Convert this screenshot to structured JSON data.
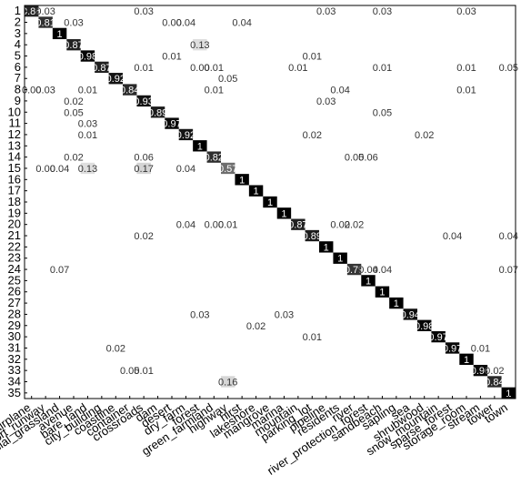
{
  "chart_data": {
    "type": "heatmap",
    "title": "",
    "xlabel": "",
    "ylabel": "",
    "grid": false,
    "colormap": "white-to-black",
    "y_tick_labels": [
      "1",
      "2",
      "3",
      "4",
      "5",
      "6",
      "7",
      "8",
      "9",
      "10",
      "11",
      "12",
      "13",
      "14",
      "15",
      "16",
      "17",
      "18",
      "19",
      "20",
      "21",
      "22",
      "23",
      "24",
      "25",
      "26",
      "27",
      "28",
      "29",
      "30",
      "31",
      "32",
      "33",
      "34",
      "35"
    ],
    "x_tick_labels": [
      "airplane",
      "airport_runway",
      "artificial_grassland",
      "avenue",
      "bare_land",
      "city_building",
      "coastline",
      "container",
      "crossroads",
      "dam",
      "desert",
      "dry_farm",
      "forest",
      "green_farmland",
      "highway",
      "hirst",
      "lakeshore",
      "mangrove",
      "marina",
      "mountain",
      "parking_lot",
      "pipeline",
      "residents",
      "river",
      "river_protection_forest",
      "sandbeach",
      "sapling",
      "sea",
      "shrubwood",
      "snow_mountain",
      "sparse_forest",
      "storage_room",
      "stream",
      "tower",
      "town"
    ],
    "cells": [
      {
        "row": 1,
        "col": 1,
        "value": 0.86,
        "label": "0.86"
      },
      {
        "row": 1,
        "col": 2,
        "value": 0.03,
        "label": "0.03"
      },
      {
        "row": 1,
        "col": 9,
        "value": 0.03,
        "label": "0.03"
      },
      {
        "row": 1,
        "col": 22,
        "value": 0.03,
        "label": "0.03"
      },
      {
        "row": 1,
        "col": 26,
        "value": 0.03,
        "label": "0.03"
      },
      {
        "row": 1,
        "col": 32,
        "value": 0.03,
        "label": "0.03"
      },
      {
        "row": 2,
        "col": 2,
        "value": 0.81,
        "label": "0.81"
      },
      {
        "row": 2,
        "col": 4,
        "value": 0.03,
        "label": "0.03"
      },
      {
        "row": 2,
        "col": 11,
        "value": 0.0,
        "label": "0.00"
      },
      {
        "row": 2,
        "col": 12,
        "value": 0.04,
        "label": "0.04"
      },
      {
        "row": 2,
        "col": 16,
        "value": 0.04,
        "label": "0.04"
      },
      {
        "row": 3,
        "col": 3,
        "value": 1,
        "label": "1"
      },
      {
        "row": 4,
        "col": 4,
        "value": 0.87,
        "label": "0.87"
      },
      {
        "row": 4,
        "col": 13,
        "value": 0.13,
        "label": "0.13"
      },
      {
        "row": 5,
        "col": 5,
        "value": 0.98,
        "label": "0.98"
      },
      {
        "row": 5,
        "col": 11,
        "value": 0.01,
        "label": "0.01"
      },
      {
        "row": 5,
        "col": 21,
        "value": 0.01,
        "label": "0.01"
      },
      {
        "row": 6,
        "col": 6,
        "value": 0.87,
        "label": "0.87"
      },
      {
        "row": 6,
        "col": 9,
        "value": 0.01,
        "label": "0.01"
      },
      {
        "row": 6,
        "col": 13,
        "value": 0.0,
        "label": "0.00"
      },
      {
        "row": 6,
        "col": 14,
        "value": 0.01,
        "label": "0.01"
      },
      {
        "row": 6,
        "col": 20,
        "value": 0.01,
        "label": "0.01"
      },
      {
        "row": 6,
        "col": 26,
        "value": 0.01,
        "label": "0.01"
      },
      {
        "row": 6,
        "col": 32,
        "value": 0.01,
        "label": "0.01"
      },
      {
        "row": 6,
        "col": 35,
        "value": 0.05,
        "label": "0.05"
      },
      {
        "row": 7,
        "col": 7,
        "value": 0.92,
        "label": "0.92"
      },
      {
        "row": 7,
        "col": 15,
        "value": 0.05,
        "label": "0.05"
      },
      {
        "row": 8,
        "col": 1,
        "value": 0.0,
        "label": "0.00"
      },
      {
        "row": 8,
        "col": 2,
        "value": 0.03,
        "label": "0.03"
      },
      {
        "row": 8,
        "col": 5,
        "value": 0.01,
        "label": "0.01"
      },
      {
        "row": 8,
        "col": 8,
        "value": 0.84,
        "label": "0.84"
      },
      {
        "row": 8,
        "col": 14,
        "value": 0.01,
        "label": "0.01"
      },
      {
        "row": 8,
        "col": 23,
        "value": 0.04,
        "label": "0.04"
      },
      {
        "row": 8,
        "col": 32,
        "value": 0.01,
        "label": "0.01"
      },
      {
        "row": 9,
        "col": 4,
        "value": 0.02,
        "label": "0.02"
      },
      {
        "row": 9,
        "col": 9,
        "value": 0.93,
        "label": "0.93"
      },
      {
        "row": 9,
        "col": 22,
        "value": 0.03,
        "label": "0.03"
      },
      {
        "row": 10,
        "col": 4,
        "value": 0.05,
        "label": "0.05"
      },
      {
        "row": 10,
        "col": 10,
        "value": 0.89,
        "label": "0.89"
      },
      {
        "row": 10,
        "col": 26,
        "value": 0.05,
        "label": "0.05"
      },
      {
        "row": 11,
        "col": 5,
        "value": 0.03,
        "label": "0.03"
      },
      {
        "row": 11,
        "col": 11,
        "value": 0.97,
        "label": "0.97"
      },
      {
        "row": 12,
        "col": 5,
        "value": 0.01,
        "label": "0.01"
      },
      {
        "row": 12,
        "col": 12,
        "value": 0.92,
        "label": "0.92"
      },
      {
        "row": 12,
        "col": 21,
        "value": 0.02,
        "label": "0.02"
      },
      {
        "row": 12,
        "col": 29,
        "value": 0.02,
        "label": "0.02"
      },
      {
        "row": 13,
        "col": 13,
        "value": 1,
        "label": "1"
      },
      {
        "row": 14,
        "col": 4,
        "value": 0.02,
        "label": "0.02"
      },
      {
        "row": 14,
        "col": 9,
        "value": 0.06,
        "label": "0.06"
      },
      {
        "row": 14,
        "col": 14,
        "value": 0.82,
        "label": "0.82"
      },
      {
        "row": 14,
        "col": 24,
        "value": 0.05,
        "label": "0.05"
      },
      {
        "row": 14,
        "col": 25,
        "value": 0.06,
        "label": "0.06"
      },
      {
        "row": 15,
        "col": 2,
        "value": 0.0,
        "label": "0.00"
      },
      {
        "row": 15,
        "col": 3,
        "value": 0.04,
        "label": "0.04"
      },
      {
        "row": 15,
        "col": 5,
        "value": 0.13,
        "label": "0.13"
      },
      {
        "row": 15,
        "col": 9,
        "value": 0.17,
        "label": "0.17"
      },
      {
        "row": 15,
        "col": 12,
        "value": 0.04,
        "label": "0.04"
      },
      {
        "row": 15,
        "col": 15,
        "value": 0.57,
        "label": "0.57"
      },
      {
        "row": 16,
        "col": 16,
        "value": 1,
        "label": "1"
      },
      {
        "row": 17,
        "col": 17,
        "value": 1,
        "label": "1"
      },
      {
        "row": 18,
        "col": 18,
        "value": 1,
        "label": "1"
      },
      {
        "row": 19,
        "col": 19,
        "value": 1,
        "label": "1"
      },
      {
        "row": 20,
        "col": 12,
        "value": 0.04,
        "label": "0.04"
      },
      {
        "row": 20,
        "col": 14,
        "value": 0.0,
        "label": "0.00"
      },
      {
        "row": 20,
        "col": 15,
        "value": 0.01,
        "label": "0.01"
      },
      {
        "row": 20,
        "col": 20,
        "value": 0.87,
        "label": "0.87"
      },
      {
        "row": 20,
        "col": 23,
        "value": 0.02,
        "label": "0.02"
      },
      {
        "row": 20,
        "col": 24,
        "value": 0.02,
        "label": "0.02"
      },
      {
        "row": 21,
        "col": 9,
        "value": 0.02,
        "label": "0.02"
      },
      {
        "row": 21,
        "col": 21,
        "value": 0.89,
        "label": "0.89"
      },
      {
        "row": 21,
        "col": 31,
        "value": 0.04,
        "label": "0.04"
      },
      {
        "row": 21,
        "col": 35,
        "value": 0.04,
        "label": "0.04"
      },
      {
        "row": 22,
        "col": 22,
        "value": 1,
        "label": "1"
      },
      {
        "row": 23,
        "col": 23,
        "value": 1,
        "label": "1"
      },
      {
        "row": 24,
        "col": 3,
        "value": 0.07,
        "label": "0.07"
      },
      {
        "row": 24,
        "col": 24,
        "value": 0.79,
        "label": "0.79"
      },
      {
        "row": 24,
        "col": 25,
        "value": 0.04,
        "label": "0.04"
      },
      {
        "row": 24,
        "col": 26,
        "value": 0.04,
        "label": "0.04"
      },
      {
        "row": 24,
        "col": 35,
        "value": 0.07,
        "label": "0.07"
      },
      {
        "row": 25,
        "col": 25,
        "value": 1,
        "label": "1"
      },
      {
        "row": 26,
        "col": 26,
        "value": 1,
        "label": "1"
      },
      {
        "row": 27,
        "col": 27,
        "value": 1,
        "label": "1"
      },
      {
        "row": 28,
        "col": 13,
        "value": 0.03,
        "label": "0.03"
      },
      {
        "row": 28,
        "col": 19,
        "value": 0.03,
        "label": "0.03"
      },
      {
        "row": 28,
        "col": 28,
        "value": 0.94,
        "label": "0.94"
      },
      {
        "row": 29,
        "col": 17,
        "value": 0.02,
        "label": "0.02"
      },
      {
        "row": 29,
        "col": 29,
        "value": 0.98,
        "label": "0.98"
      },
      {
        "row": 30,
        "col": 21,
        "value": 0.01,
        "label": "0.01"
      },
      {
        "row": 30,
        "col": 30,
        "value": 0.97,
        "label": "0.97"
      },
      {
        "row": 31,
        "col": 7,
        "value": 0.02,
        "label": "0.02"
      },
      {
        "row": 31,
        "col": 31,
        "value": 0.97,
        "label": "0.97"
      },
      {
        "row": 31,
        "col": 33,
        "value": 0.01,
        "label": "0.01"
      },
      {
        "row": 32,
        "col": 32,
        "value": 1,
        "label": "1"
      },
      {
        "row": 33,
        "col": 8,
        "value": 0.05,
        "label": "0.05"
      },
      {
        "row": 33,
        "col": 9,
        "value": 0.01,
        "label": "0.01"
      },
      {
        "row": 33,
        "col": 33,
        "value": 0.96,
        "label": "0.96"
      },
      {
        "row": 33,
        "col": 34,
        "value": 0.02,
        "label": "0.02"
      },
      {
        "row": 34,
        "col": 15,
        "value": 0.16,
        "label": "0.16"
      },
      {
        "row": 34,
        "col": 34,
        "value": 0.84,
        "label": "0.84"
      },
      {
        "row": 35,
        "col": 35,
        "value": 1,
        "label": "1"
      }
    ]
  }
}
